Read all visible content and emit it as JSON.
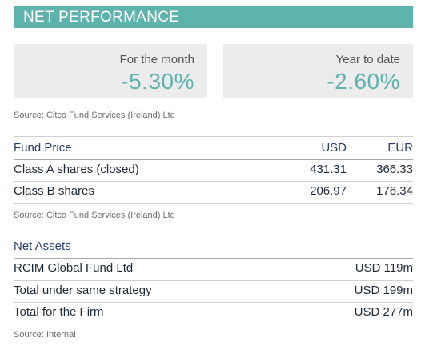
{
  "header": {
    "title": "NET PERFORMANCE"
  },
  "performance": {
    "month": {
      "label": "For the month",
      "value": "-5.30%"
    },
    "ytd": {
      "label": "Year to date",
      "value": "-2.60%"
    }
  },
  "sources": {
    "performance": "Source: Citco Fund Services (Ireland) Ltd",
    "fund_price": "Source: Citco Fund Services (Ireland) Ltd",
    "net_assets": "Source: Internal"
  },
  "fund_price": {
    "title": "Fund Price",
    "col_usd": "USD",
    "col_eur": "EUR",
    "rows": [
      {
        "label": "Class A shares (closed)",
        "usd": "431.31",
        "eur": "366.33"
      },
      {
        "label": "Class B shares",
        "usd": "206.97",
        "eur": "176.34"
      }
    ]
  },
  "net_assets": {
    "title": "Net Assets",
    "rows": [
      {
        "label": "RCIM Global Fund Ltd",
        "amount": "USD 119m"
      },
      {
        "label": "Total under same strategy",
        "amount": "USD 199m"
      },
      {
        "label": "Total for the Firm",
        "amount": "USD 277m"
      }
    ]
  },
  "colors": {
    "accent": "#5eb3ad",
    "box_bg": "#ececec",
    "heading": "#2a3d6b"
  }
}
